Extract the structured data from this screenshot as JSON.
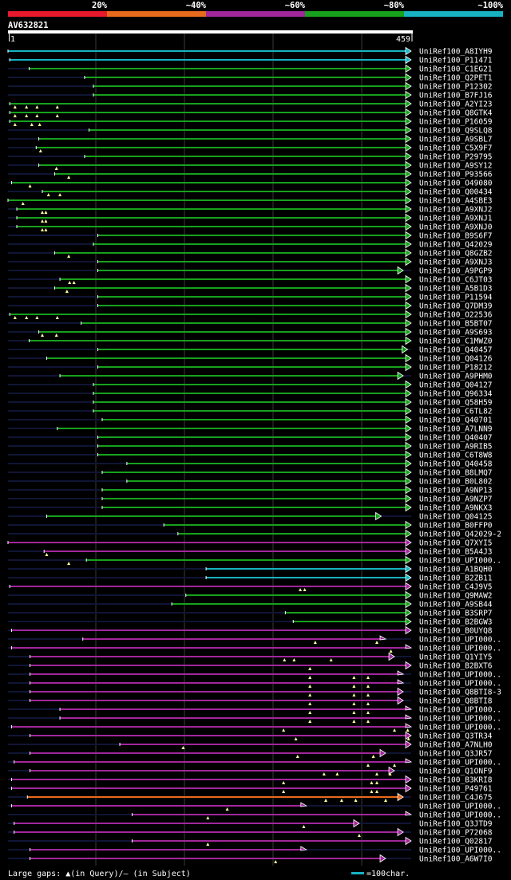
{
  "chart_data": {
    "type": "alignment-overview",
    "title": "AV632821",
    "query_length": 459,
    "axis": {
      "start_label": "1",
      "end_label": "459"
    },
    "identity_legend": [
      {
        "label": "20%",
        "color": "#e8192c"
      },
      {
        "label": "~40%",
        "color": "#e86a1c"
      },
      {
        "label": "~60%",
        "color": "#a1279b"
      },
      {
        "label": "~80%",
        "color": "#17a11d"
      },
      {
        "label": "~100%",
        "color": "#17b3c3"
      }
    ],
    "footer": {
      "gaps_text": "Large gaps: ▲(in Query)/– (in Subject)",
      "scale_text": "=100char."
    },
    "hits": [
      {
        "name": "UniRef100_A8IYH9",
        "start": 1,
        "end": 459,
        "cls": 4,
        "arrow": "full",
        "gaps": []
      },
      {
        "name": "UniRef100_P11471",
        "start": 3,
        "end": 459,
        "cls": 4,
        "arrow": "full",
        "gaps": []
      },
      {
        "name": "UniRef100_C1EG21",
        "start": 25,
        "end": 459,
        "cls": 3,
        "arrow": "full",
        "gaps": []
      },
      {
        "name": "UniRef100_Q2PET1",
        "start": 88,
        "end": 459,
        "cls": 3,
        "arrow": "full",
        "gaps": []
      },
      {
        "name": "UniRef100_P12302",
        "start": 98,
        "end": 459,
        "cls": 3,
        "arrow": "full",
        "gaps": []
      },
      {
        "name": "UniRef100_B7FJ16",
        "start": 98,
        "end": 459,
        "cls": 3,
        "arrow": "full",
        "gaps": []
      },
      {
        "name": "UniRef100_A2YI23",
        "start": 3,
        "end": 459,
        "cls": 3,
        "arrow": "full",
        "gaps": [
          9,
          22,
          34,
          57
        ]
      },
      {
        "name": "UniRef100_Q8GTK4",
        "start": 3,
        "end": 459,
        "cls": 3,
        "arrow": "full",
        "gaps": [
          9,
          22,
          34,
          57
        ]
      },
      {
        "name": "UniRef100_P16059",
        "start": 3,
        "end": 459,
        "cls": 3,
        "arrow": "full",
        "gaps": [
          9,
          28,
          37
        ]
      },
      {
        "name": "UniRef100_Q9SLQ8",
        "start": 93,
        "end": 459,
        "cls": 3,
        "arrow": "full",
        "gaps": []
      },
      {
        "name": "UniRef100_A9SBL7",
        "start": 36,
        "end": 459,
        "cls": 3,
        "arrow": "full",
        "gaps": []
      },
      {
        "name": "UniRef100_C5X9F7",
        "start": 33,
        "end": 459,
        "cls": 3,
        "arrow": "full",
        "gaps": [
          38
        ]
      },
      {
        "name": "UniRef100_P29795",
        "start": 88,
        "end": 459,
        "cls": 3,
        "arrow": "full",
        "gaps": []
      },
      {
        "name": "UniRef100_A9SY12",
        "start": 36,
        "end": 459,
        "cls": 3,
        "arrow": "full",
        "gaps": [
          56
        ]
      },
      {
        "name": "UniRef100_P93566",
        "start": 54,
        "end": 459,
        "cls": 3,
        "arrow": "full",
        "gaps": [
          70
        ]
      },
      {
        "name": "UniRef100_O49080",
        "start": 5,
        "end": 459,
        "cls": 3,
        "arrow": "full",
        "gaps": [
          26
        ]
      },
      {
        "name": "UniRef100_Q00434",
        "start": 40,
        "end": 459,
        "cls": 3,
        "arrow": "full",
        "gaps": [
          47,
          60
        ]
      },
      {
        "name": "UniRef100_A4SBE3",
        "start": 1,
        "end": 459,
        "cls": 3,
        "arrow": "full",
        "gaps": [
          18
        ]
      },
      {
        "name": "UniRef100_A9XNJ2",
        "start": 11,
        "end": 459,
        "cls": 3,
        "arrow": "full",
        "gaps": [
          40,
          44
        ]
      },
      {
        "name": "UniRef100_A9XNJ1",
        "start": 11,
        "end": 459,
        "cls": 3,
        "arrow": "full",
        "gaps": [
          40,
          44
        ]
      },
      {
        "name": "UniRef100_A9XNJ0",
        "start": 11,
        "end": 459,
        "cls": 3,
        "arrow": "full",
        "gaps": [
          40,
          44
        ]
      },
      {
        "name": "UniRef100_B9S6F7",
        "start": 103,
        "end": 459,
        "cls": 3,
        "arrow": "full",
        "gaps": []
      },
      {
        "name": "UniRef100_Q42029",
        "start": 98,
        "end": 459,
        "cls": 3,
        "arrow": "full",
        "gaps": []
      },
      {
        "name": "UniRef100_Q8GZB2",
        "start": 54,
        "end": 459,
        "cls": 3,
        "arrow": "full",
        "gaps": [
          70
        ]
      },
      {
        "name": "UniRef100_A9XNJ3",
        "start": 103,
        "end": 459,
        "cls": 3,
        "arrow": "full",
        "gaps": []
      },
      {
        "name": "UniRef100_A9PGP9",
        "start": 103,
        "end": 450,
        "cls": 3,
        "arrow": "full",
        "gaps": []
      },
      {
        "name": "UniRef100_C6JT03",
        "start": 60,
        "end": 459,
        "cls": 3,
        "arrow": "full",
        "gaps": [
          71,
          76
        ]
      },
      {
        "name": "UniRef100_A5B1D3",
        "start": 54,
        "end": 459,
        "cls": 3,
        "arrow": "full",
        "gaps": [
          68
        ]
      },
      {
        "name": "UniRef100_P11594",
        "start": 103,
        "end": 459,
        "cls": 3,
        "arrow": "full",
        "gaps": []
      },
      {
        "name": "UniRef100_Q7DM39",
        "start": 103,
        "end": 459,
        "cls": 3,
        "arrow": "full",
        "gaps": []
      },
      {
        "name": "UniRef100_O22536",
        "start": 3,
        "end": 459,
        "cls": 3,
        "arrow": "full",
        "gaps": [
          9,
          22,
          34,
          57
        ]
      },
      {
        "name": "UniRef100_B5BT07",
        "start": 84,
        "end": 459,
        "cls": 3,
        "arrow": "full",
        "gaps": []
      },
      {
        "name": "UniRef100_A9S693",
        "start": 36,
        "end": 459,
        "cls": 3,
        "arrow": "full",
        "gaps": [
          40,
          56
        ]
      },
      {
        "name": "UniRef100_C1MWZ0",
        "start": 25,
        "end": 459,
        "cls": 3,
        "arrow": "full",
        "gaps": []
      },
      {
        "name": "UniRef100_Q40457",
        "start": 103,
        "end": 455,
        "cls": 3,
        "arrow": "full",
        "gaps": []
      },
      {
        "name": "UniRef100_Q04126",
        "start": 45,
        "end": 459,
        "cls": 3,
        "arrow": "full",
        "gaps": []
      },
      {
        "name": "UniRef100_P18212",
        "start": 103,
        "end": 459,
        "cls": 3,
        "arrow": "full",
        "gaps": []
      },
      {
        "name": "UniRef100_A9PHM0",
        "start": 60,
        "end": 450,
        "cls": 3,
        "arrow": "full",
        "gaps": []
      },
      {
        "name": "UniRef100_Q04127",
        "start": 98,
        "end": 459,
        "cls": 3,
        "arrow": "full",
        "gaps": []
      },
      {
        "name": "UniRef100_Q96334",
        "start": 98,
        "end": 459,
        "cls": 3,
        "arrow": "full",
        "gaps": []
      },
      {
        "name": "UniRef100_Q58H59",
        "start": 98,
        "end": 459,
        "cls": 3,
        "arrow": "full",
        "gaps": []
      },
      {
        "name": "UniRef100_C6TL82",
        "start": 98,
        "end": 459,
        "cls": 3,
        "arrow": "full",
        "gaps": []
      },
      {
        "name": "UniRef100_Q40701",
        "start": 108,
        "end": 459,
        "cls": 3,
        "arrow": "full",
        "gaps": []
      },
      {
        "name": "UniRef100_A7LNN9",
        "start": 57,
        "end": 459,
        "cls": 3,
        "arrow": "full",
        "gaps": []
      },
      {
        "name": "UniRef100_Q40407",
        "start": 103,
        "end": 459,
        "cls": 3,
        "arrow": "full",
        "gaps": []
      },
      {
        "name": "UniRef100_A9RIB5",
        "start": 103,
        "end": 459,
        "cls": 3,
        "arrow": "full",
        "gaps": []
      },
      {
        "name": "UniRef100_C6T8W8",
        "start": 103,
        "end": 459,
        "cls": 3,
        "arrow": "full",
        "gaps": []
      },
      {
        "name": "UniRef100_Q40458",
        "start": 136,
        "end": 459,
        "cls": 3,
        "arrow": "full",
        "gaps": []
      },
      {
        "name": "UniRef100_B8LMQ7",
        "start": 108,
        "end": 459,
        "cls": 3,
        "arrow": "full",
        "gaps": []
      },
      {
        "name": "UniRef100_B0L802",
        "start": 136,
        "end": 459,
        "cls": 3,
        "arrow": "full",
        "gaps": []
      },
      {
        "name": "UniRef100_A9NP13",
        "start": 108,
        "end": 459,
        "cls": 3,
        "arrow": "full",
        "gaps": []
      },
      {
        "name": "UniRef100_A9NZP7",
        "start": 108,
        "end": 459,
        "cls": 3,
        "arrow": "full",
        "gaps": []
      },
      {
        "name": "UniRef100_A9NKX3",
        "start": 108,
        "end": 459,
        "cls": 3,
        "arrow": "full",
        "gaps": []
      },
      {
        "name": "UniRef100_Q04125",
        "start": 45,
        "end": 425,
        "cls": 3,
        "arrow": "full",
        "gaps": []
      },
      {
        "name": "UniRef100_B0FFP0",
        "start": 178,
        "end": 459,
        "cls": 3,
        "arrow": "full",
        "gaps": []
      },
      {
        "name": "UniRef100_Q42029-2",
        "start": 194,
        "end": 459,
        "cls": 3,
        "arrow": "full",
        "gaps": []
      },
      {
        "name": "UniRef100_Q7XYI5",
        "start": 1,
        "end": 459,
        "cls": 2,
        "arrow": "full",
        "gaps": []
      },
      {
        "name": "UniRef100_B5A4J3",
        "start": 42,
        "end": 459,
        "cls": 2,
        "arrow": "full",
        "gaps": [
          45
        ]
      },
      {
        "name": "UniRef100_UPI000..",
        "start": 90,
        "end": 459,
        "cls": 3,
        "arrow": "full",
        "gaps": [
          70
        ]
      },
      {
        "name": "UniRef100_A1BQH0",
        "start": 226,
        "end": 459,
        "cls": 4,
        "arrow": "full",
        "gaps": []
      },
      {
        "name": "UniRef100_B2ZB11",
        "start": 226,
        "end": 459,
        "cls": 4,
        "arrow": "full",
        "gaps": []
      },
      {
        "name": "UniRef100_C4J9V5",
        "start": 3,
        "end": 459,
        "cls": 2,
        "arrow": "full",
        "gaps": [
          333,
          338
        ]
      },
      {
        "name": "UniRef100_Q9MAW2",
        "start": 203,
        "end": 459,
        "cls": 3,
        "arrow": "full",
        "gaps": []
      },
      {
        "name": "UniRef100_A9SB44",
        "start": 187,
        "end": 459,
        "cls": 3,
        "arrow": "full",
        "gaps": []
      },
      {
        "name": "UniRef100_B3SRP7",
        "start": 316,
        "end": 459,
        "cls": 3,
        "arrow": "full",
        "gaps": []
      },
      {
        "name": "UniRef100_B2BGW3",
        "start": 325,
        "end": 459,
        "cls": 3,
        "arrow": "full",
        "gaps": []
      },
      {
        "name": "UniRef100_B0UYQ8",
        "start": 5,
        "end": 459,
        "cls": 2,
        "arrow": "full",
        "gaps": []
      },
      {
        "name": "UniRef100_UPI000..(1)",
        "start": 86,
        "end": 430,
        "cls": 2,
        "arrow": "half",
        "gaps": [
          350,
          420
        ]
      },
      {
        "name": "UniRef100_UPI000..(2)",
        "start": 5,
        "end": 459,
        "cls": 2,
        "arrow": "half",
        "gaps": [
          436
        ]
      },
      {
        "name": "UniRef100_Q1YIY5",
        "start": 26,
        "end": 440,
        "cls": 2,
        "arrow": "full",
        "gaps": [
          315,
          326,
          368
        ]
      },
      {
        "name": "UniRef100_B2BXT6",
        "start": 26,
        "end": 459,
        "cls": 2,
        "arrow": "full",
        "gaps": [
          344
        ]
      },
      {
        "name": "UniRef100_UPI000..(3)",
        "start": 26,
        "end": 450,
        "cls": 2,
        "arrow": "half",
        "gaps": [
          344,
          394,
          410
        ]
      },
      {
        "name": "UniRef100_UPI000..(4)",
        "start": 26,
        "end": 450,
        "cls": 2,
        "arrow": "half",
        "gaps": [
          344,
          394,
          410
        ]
      },
      {
        "name": "UniRef100_Q8BTI8-3",
        "start": 26,
        "end": 450,
        "cls": 2,
        "arrow": "full",
        "gaps": [
          344,
          394,
          410
        ]
      },
      {
        "name": "UniRef100_Q8BTI8",
        "start": 26,
        "end": 450,
        "cls": 2,
        "arrow": "full",
        "gaps": [
          344,
          394,
          410
        ]
      },
      {
        "name": "UniRef100_UPI000..(5)",
        "start": 60,
        "end": 459,
        "cls": 2,
        "arrow": "half",
        "gaps": [
          344,
          394,
          410
        ]
      },
      {
        "name": "UniRef100_UPI000..(6)",
        "start": 60,
        "end": 459,
        "cls": 2,
        "arrow": "half",
        "gaps": [
          344,
          394,
          410
        ]
      },
      {
        "name": "UniRef100_UPI000..(7)",
        "start": 5,
        "end": 459,
        "cls": 2,
        "arrow": "half",
        "gaps": [
          314,
          440,
          455
        ]
      },
      {
        "name": "UniRef100_Q3TR34",
        "start": 26,
        "end": 459,
        "cls": 2,
        "arrow": "full",
        "gaps": [
          328,
          456
        ]
      },
      {
        "name": "UniRef100_A7NLH0",
        "start": 128,
        "end": 459,
        "cls": 2,
        "arrow": "full",
        "gaps": [
          200
        ]
      },
      {
        "name": "UniRef100_Q3JR57",
        "start": 26,
        "end": 430,
        "cls": 2,
        "arrow": "full",
        "gaps": [
          330,
          416
        ]
      },
      {
        "name": "UniRef100_UPI000..(8)",
        "start": 8,
        "end": 459,
        "cls": 2,
        "arrow": "half",
        "gaps": [
          410,
          440
        ]
      },
      {
        "name": "UniRef100_Q1ONF9",
        "start": 26,
        "end": 440,
        "cls": 2,
        "arrow": "full",
        "gaps": [
          360,
          375,
          420,
          435
        ]
      },
      {
        "name": "UniRef100_B3KRI8",
        "start": 5,
        "end": 459,
        "cls": 2,
        "arrow": "full",
        "gaps": [
          314,
          414,
          420
        ]
      },
      {
        "name": "UniRef100_P49761",
        "start": 5,
        "end": 459,
        "cls": 2,
        "arrow": "full",
        "gaps": [
          314,
          414,
          420
        ]
      },
      {
        "name": "UniRef100_C4J675",
        "start": 23,
        "end": 450,
        "cls": 1,
        "arrow": "full",
        "gaps": [
          362,
          380,
          396,
          430
        ]
      },
      {
        "name": "UniRef100_UPI000..(9)",
        "start": 5,
        "end": 340,
        "cls": 2,
        "arrow": "half",
        "gaps": [
          250
        ]
      },
      {
        "name": "UniRef100_UPI000..(10)",
        "start": 142,
        "end": 459,
        "cls": 2,
        "arrow": "half",
        "gaps": [
          228
        ]
      },
      {
        "name": "UniRef100_Q3JTD9",
        "start": 8,
        "end": 400,
        "cls": 2,
        "arrow": "full",
        "gaps": [
          337
        ]
      },
      {
        "name": "UniRef100_P72068",
        "start": 8,
        "end": 450,
        "cls": 2,
        "arrow": "full",
        "gaps": [
          400
        ]
      },
      {
        "name": "UniRef100_Q02817",
        "start": 142,
        "end": 459,
        "cls": 2,
        "arrow": "full",
        "gaps": [
          228
        ]
      },
      {
        "name": "UniRef100_UPI000..(11)",
        "start": 26,
        "end": 340,
        "cls": 2,
        "arrow": "half",
        "gaps": []
      },
      {
        "name": "UniRef100_A6W7I0",
        "start": 26,
        "end": 430,
        "cls": 2,
        "arrow": "full",
        "gaps": [
          305
        ]
      }
    ],
    "display_names": [
      "UniRef100_A8IYH9",
      "UniRef100_P11471",
      "UniRef100_C1EG21",
      "UniRef100_Q2PET1",
      "UniRef100_P12302",
      "UniRef100_B7FJ16",
      "UniRef100_A2YI23",
      "UniRef100_Q8GTK4",
      "UniRef100_P16059",
      "UniRef100_Q9SLQ8",
      "UniRef100_A9SBL7",
      "UniRef100_C5X9F7",
      "UniRef100_P29795",
      "UniRef100_A9SY12",
      "UniRef100_P93566",
      "UniRef100_O49080",
      "UniRef100_Q00434",
      "UniRef100_A4SBE3",
      "UniRef100_A9XNJ2",
      "UniRef100_A9XNJ1",
      "UniRef100_A9XNJ0",
      "UniRef100_B9S6F7",
      "UniRef100_Q42029",
      "UniRef100_Q8GZB2",
      "UniRef100_A9XNJ3",
      "UniRef100_A9PGP9",
      "UniRef100_C6JT03",
      "UniRef100_A5B1D3",
      "UniRef100_P11594",
      "UniRef100_Q7DM39",
      "UniRef100_O22536",
      "UniRef100_B5BT07",
      "UniRef100_A9S693",
      "UniRef100_C1MWZ0",
      "UniRef100_Q40457",
      "UniRef100_Q04126",
      "UniRef100_P18212",
      "UniRef100_A9PHM0",
      "UniRef100_Q04127",
      "UniRef100_Q96334",
      "UniRef100_Q58H59",
      "UniRef100_C6TL82",
      "UniRef100_Q40701",
      "UniRef100_A7LNN9",
      "UniRef100_Q40407",
      "UniRef100_A9RIB5",
      "UniRef100_C6T8W8",
      "UniRef100_Q40458",
      "UniRef100_B8LMQ7",
      "UniRef100_B0L802",
      "UniRef100_A9NP13",
      "UniRef100_A9NZP7",
      "UniRef100_A9NKX3",
      "UniRef100_Q04125",
      "UniRef100_B0FFP0",
      "UniRef100_Q42029-2",
      "UniRef100_Q7XYI5",
      "UniRef100_B5A4J3",
      "UniRef100_UPI000..",
      "UniRef100_A1BQH0",
      "UniRef100_B2ZB11",
      "UniRef100_C4J9V5",
      "UniRef100_Q9MAW2",
      "UniRef100_A9SB44",
      "UniRef100_B3SRP7",
      "UniRef100_B2BGW3",
      "UniRef100_B0UYQ8",
      "UniRef100_UPI000..",
      "UniRef100_UPI000..",
      "UniRef100_Q1YIY5",
      "UniRef100_B2BXT6",
      "UniRef100_UPI000..",
      "UniRef100_UPI000..",
      "UniRef100_Q8BTI8-3",
      "UniRef100_Q8BTI8",
      "UniRef100_UPI000..",
      "UniRef100_UPI000..",
      "UniRef100_UPI000..",
      "UniRef100_Q3TR34",
      "UniRef100_A7NLH0",
      "UniRef100_Q3JR57",
      "UniRef100_UPI000..",
      "UniRef100_Q1ONF9",
      "UniRef100_B3KRI8",
      "UniRef100_P49761",
      "UniRef100_C4J675",
      "UniRef100_UPI000..",
      "UniRef100_UPI000..",
      "UniRef100_Q3JTD9",
      "UniRef100_P72068",
      "UniRef100_Q02817",
      "UniRef100_UPI000..",
      "UniRef100_A6W7I0"
    ]
  }
}
